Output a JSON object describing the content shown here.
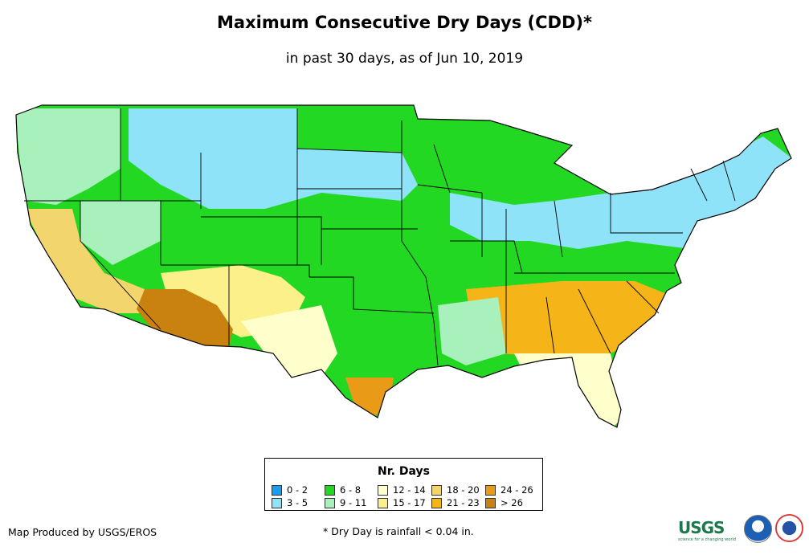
{
  "title": "Maximum Consecutive Dry Days (CDD)*",
  "subtitle": "in past 30 days, as of Jun 10, 2019",
  "legend": {
    "title": "Nr. Days",
    "items": [
      {
        "label": "0 - 2",
        "color": "#1a9cf0"
      },
      {
        "label": "3 - 5",
        "color": "#8ee3f8"
      },
      {
        "label": "6 - 8",
        "color": "#22d822"
      },
      {
        "label": "9 - 11",
        "color": "#a8f0bc"
      },
      {
        "label": "12 - 14",
        "color": "#ffffcc"
      },
      {
        "label": "15 - 17",
        "color": "#fbf08a"
      },
      {
        "label": "18 - 20",
        "color": "#f2d56c"
      },
      {
        "label": "21 - 23",
        "color": "#f5b418"
      },
      {
        "label": "24 - 26",
        "color": "#e99a16"
      },
      {
        "label": "> 26",
        "color": "#c98210"
      }
    ]
  },
  "credit": "Map Produced by USGS/EROS",
  "footnote": "* Dry Day is rainfall < 0.04 in.",
  "logos": {
    "usgs": "USGS",
    "usgs_tagline": "science for a changing world",
    "noaa": "noaa-logo",
    "nws": "nws-logo"
  },
  "regions": [
    {
      "name": "pacific-northwest",
      "class": "9 - 11"
    },
    {
      "name": "northern-plains",
      "class": "3 - 5"
    },
    {
      "name": "midwest",
      "class": "6 - 8"
    },
    {
      "name": "great-lakes-northeast",
      "class": "3 - 5"
    },
    {
      "name": "southern-plains",
      "class": "6 - 8"
    },
    {
      "name": "southeast",
      "class": "21 - 23"
    },
    {
      "name": "florida",
      "class": "12 - 14"
    },
    {
      "name": "southwest-desert",
      "class": "> 26"
    },
    {
      "name": "california-coast",
      "class": "18 - 20"
    },
    {
      "name": "south-texas",
      "class": "24 - 26"
    },
    {
      "name": "great-basin",
      "class": "9 - 11"
    },
    {
      "name": "four-corners",
      "class": "15 - 17"
    }
  ]
}
